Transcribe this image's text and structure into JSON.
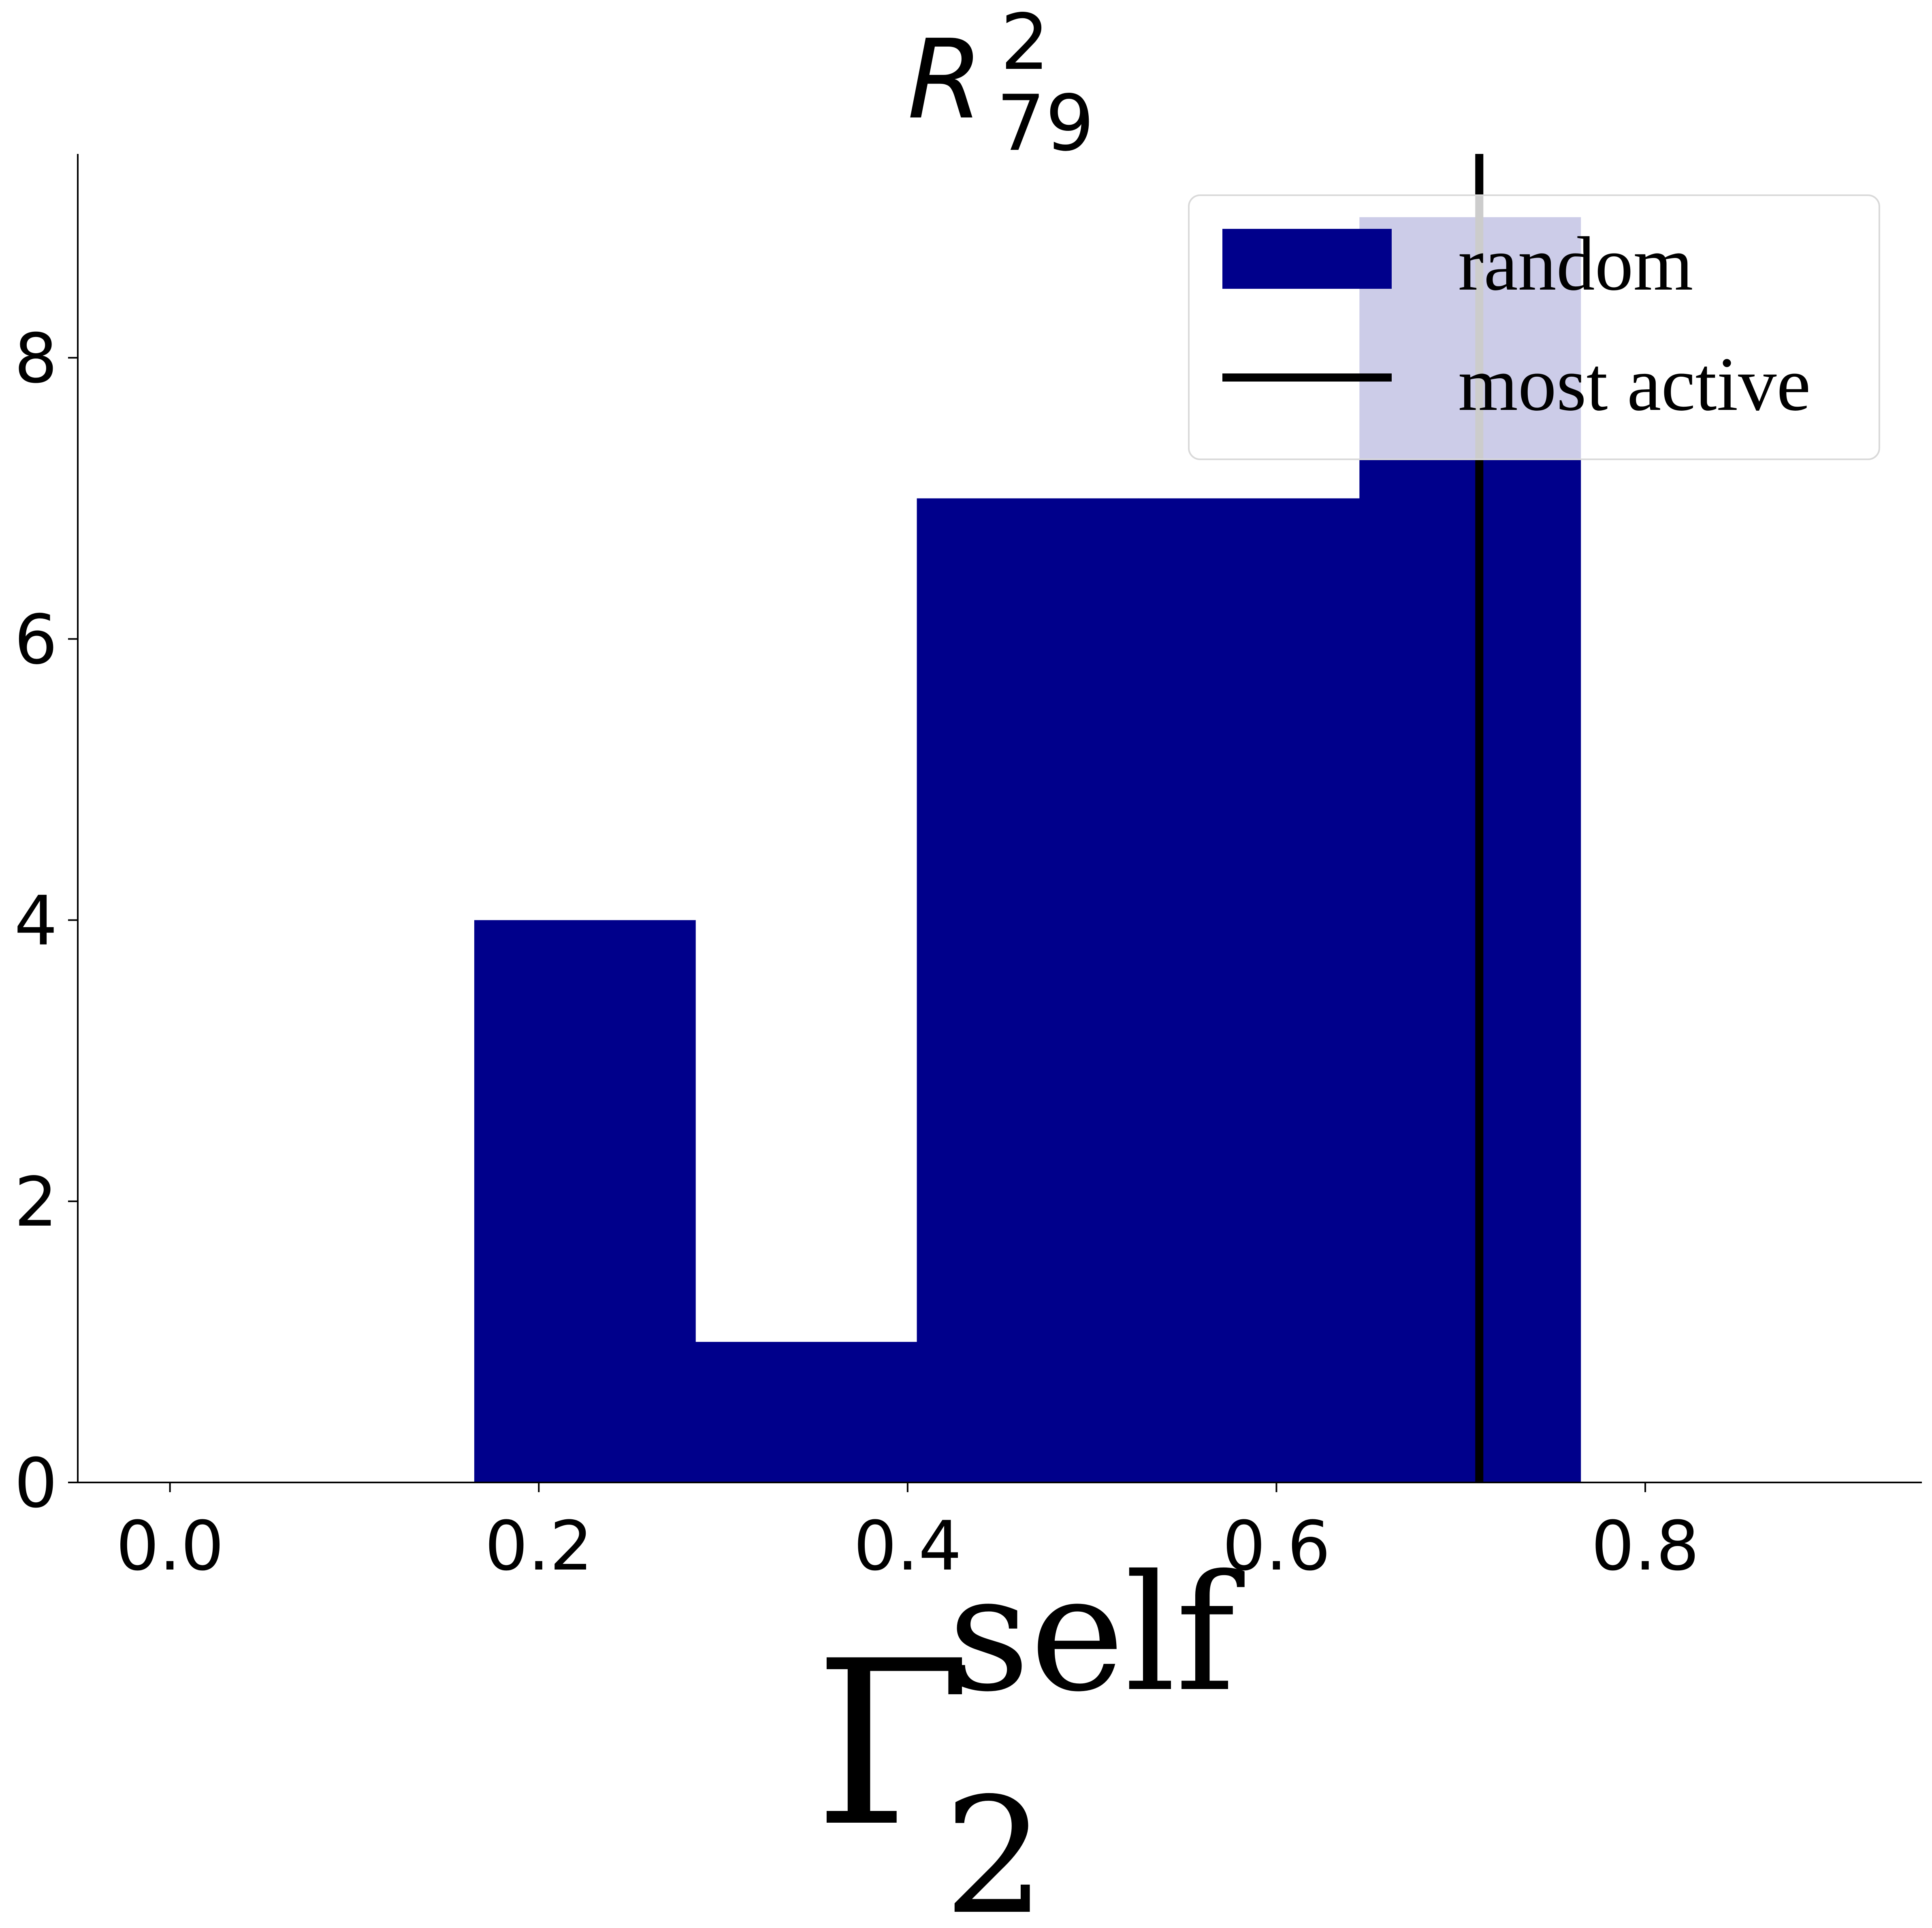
{
  "chart_data": {
    "type": "bar",
    "title": {
      "base": "R",
      "superscript": "2",
      "subscript": "79"
    },
    "xlabel": {
      "base": "Γ",
      "superscript": "self",
      "subscript": "2"
    },
    "ylabel": "",
    "bins": [
      {
        "x_start": 0.165,
        "x_end": 0.285,
        "count": 4
      },
      {
        "x_start": 0.285,
        "x_end": 0.405,
        "count": 1
      },
      {
        "x_start": 0.405,
        "x_end": 0.525,
        "count": 7
      },
      {
        "x_start": 0.525,
        "x_end": 0.645,
        "count": 7
      },
      {
        "x_start": 0.645,
        "x_end": 0.765,
        "count": 9
      }
    ],
    "vline": {
      "name": "most active",
      "x": 0.71
    },
    "xlim": [
      -0.05,
      0.95
    ],
    "ylim": [
      0,
      9.45
    ],
    "xticks": [
      0.0,
      0.2,
      0.4,
      0.6,
      0.8
    ],
    "xtick_labels": [
      "0.0",
      "0.2",
      "0.4",
      "0.6",
      "0.8"
    ],
    "yticks": [
      0,
      2,
      4,
      6,
      8
    ],
    "ytick_labels": [
      "0",
      "2",
      "4",
      "6",
      "8"
    ],
    "legend": {
      "placement": "top-right",
      "entries": [
        {
          "label": "random",
          "kind": "patch",
          "color": "#00008b"
        },
        {
          "label": "most active",
          "kind": "line",
          "color": "#000000"
        }
      ]
    },
    "colors": {
      "bars": "#00008b",
      "vline": "#000000"
    },
    "grid": false
  }
}
